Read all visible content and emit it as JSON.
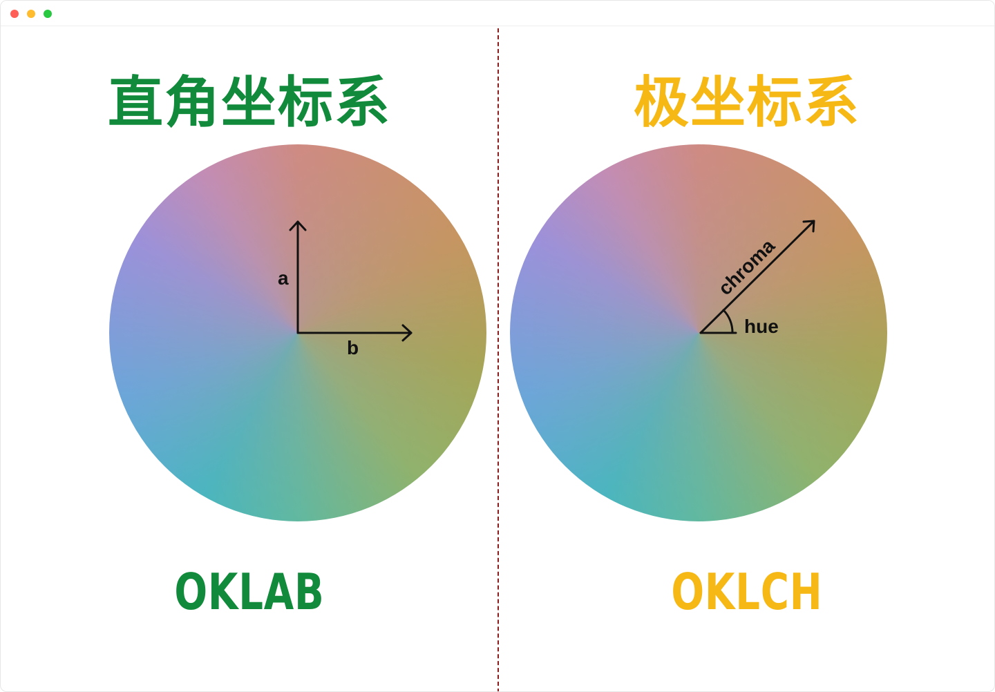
{
  "window": {
    "traffic_lights": {
      "close_color": "#ff5f57",
      "minimize_color": "#febc2e",
      "zoom_color": "#28c840"
    }
  },
  "left": {
    "heading": "直角坐标系",
    "heading_color": "#118a3c",
    "label": "OKLAB",
    "label_color": "#118a3c",
    "axis_a_label": "a",
    "axis_b_label": "b"
  },
  "right": {
    "heading": "极坐标系",
    "heading_color": "#f5b814",
    "label": "OKLCH",
    "label_color": "#f5b814",
    "chroma_label": "chroma",
    "hue_label": "hue"
  },
  "divider_color": "#8b1a1a"
}
